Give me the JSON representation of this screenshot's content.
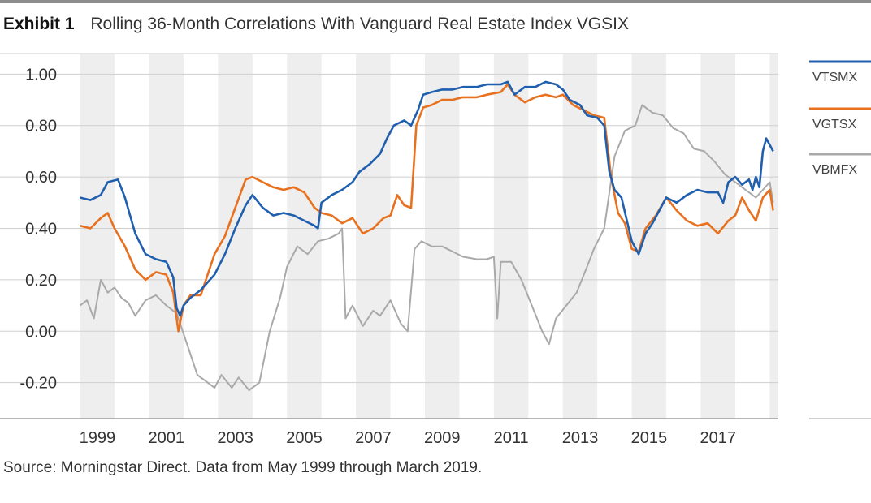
{
  "header": {
    "exhibit_label": "Exhibit 1",
    "title": "Rolling 36-Month Correlations With Vanguard Real Estate Index VGSIX"
  },
  "footer": {
    "source": "Source: Morningstar Direct. Data from May 1999 through March 2019."
  },
  "colors": {
    "VTSMX": "#1f5fad",
    "VGTSX": "#e8711f",
    "VBMFX": "#a9a9a9",
    "band": "#eeeeee",
    "grid": "#cfcfcf",
    "rule": "#8c8c8c"
  },
  "chart_data": {
    "type": "line",
    "title": "Rolling 36-Month Correlations With Vanguard Real Estate Index VGSIX",
    "xlabel": "",
    "ylabel": "",
    "xlim": [
      1998.75,
      2019.25
    ],
    "ylim": [
      -0.34,
      1.08
    ],
    "y_ticks": [
      1.0,
      0.8,
      0.6,
      0.4,
      0.2,
      0.0,
      -0.2
    ],
    "y_tick_labels": [
      "1.00",
      "0.80",
      "0.60",
      "0.40",
      "0.20",
      "0.00",
      "-0.20"
    ],
    "x_tick_labels": [
      "1999",
      "2001",
      "2003",
      "2005",
      "2007",
      "2009",
      "2011",
      "2013",
      "2015",
      "2017"
    ],
    "x_tick_positions": [
      1999.5,
      2001.5,
      2003.5,
      2005.5,
      2007.5,
      2009.5,
      2011.5,
      2013.5,
      2015.5,
      2017.5
    ],
    "shaded_year_bands": [
      [
        1999,
        2000
      ],
      [
        2001,
        2002
      ],
      [
        2003,
        2004
      ],
      [
        2005,
        2006
      ],
      [
        2007,
        2008
      ],
      [
        2009,
        2010
      ],
      [
        2011,
        2012
      ],
      [
        2013,
        2014
      ],
      [
        2015,
        2016
      ],
      [
        2017,
        2018
      ],
      [
        2019,
        2019.25
      ]
    ],
    "legend_position": "right",
    "series": [
      {
        "name": "VTSMX",
        "points": [
          [
            1999.0,
            0.52
          ],
          [
            1999.3,
            0.51
          ],
          [
            1999.6,
            0.53
          ],
          [
            1999.8,
            0.58
          ],
          [
            2000.1,
            0.59
          ],
          [
            2000.3,
            0.52
          ],
          [
            2000.6,
            0.38
          ],
          [
            2000.9,
            0.3
          ],
          [
            2001.2,
            0.28
          ],
          [
            2001.5,
            0.27
          ],
          [
            2001.7,
            0.21
          ],
          [
            2001.8,
            0.09
          ],
          [
            2001.9,
            0.06
          ],
          [
            2002.0,
            0.1
          ],
          [
            2002.2,
            0.13
          ],
          [
            2002.5,
            0.16
          ],
          [
            2002.9,
            0.22
          ],
          [
            2003.2,
            0.3
          ],
          [
            2003.5,
            0.4
          ],
          [
            2003.8,
            0.49
          ],
          [
            2004.0,
            0.53
          ],
          [
            2004.3,
            0.48
          ],
          [
            2004.6,
            0.45
          ],
          [
            2004.9,
            0.46
          ],
          [
            2005.2,
            0.45
          ],
          [
            2005.5,
            0.43
          ],
          [
            2005.8,
            0.41
          ],
          [
            2005.9,
            0.4
          ],
          [
            2006.0,
            0.5
          ],
          [
            2006.3,
            0.53
          ],
          [
            2006.6,
            0.55
          ],
          [
            2006.9,
            0.58
          ],
          [
            2007.1,
            0.62
          ],
          [
            2007.4,
            0.65
          ],
          [
            2007.7,
            0.69
          ],
          [
            2007.9,
            0.75
          ],
          [
            2008.1,
            0.8
          ],
          [
            2008.4,
            0.82
          ],
          [
            2008.6,
            0.8
          ],
          [
            2008.8,
            0.86
          ],
          [
            2008.95,
            0.92
          ],
          [
            2009.2,
            0.93
          ],
          [
            2009.5,
            0.94
          ],
          [
            2009.8,
            0.94
          ],
          [
            2010.1,
            0.95
          ],
          [
            2010.5,
            0.95
          ],
          [
            2010.8,
            0.96
          ],
          [
            2011.2,
            0.96
          ],
          [
            2011.4,
            0.97
          ],
          [
            2011.6,
            0.92
          ],
          [
            2011.9,
            0.95
          ],
          [
            2012.2,
            0.95
          ],
          [
            2012.5,
            0.97
          ],
          [
            2012.8,
            0.96
          ],
          [
            2013.0,
            0.94
          ],
          [
            2013.2,
            0.9
          ],
          [
            2013.5,
            0.88
          ],
          [
            2013.7,
            0.84
          ],
          [
            2014.0,
            0.83
          ],
          [
            2014.2,
            0.8
          ],
          [
            2014.35,
            0.62
          ],
          [
            2014.5,
            0.55
          ],
          [
            2014.7,
            0.52
          ],
          [
            2015.0,
            0.35
          ],
          [
            2015.2,
            0.3
          ],
          [
            2015.4,
            0.38
          ],
          [
            2015.6,
            0.42
          ],
          [
            2015.8,
            0.47
          ],
          [
            2016.0,
            0.52
          ],
          [
            2016.3,
            0.5
          ],
          [
            2016.6,
            0.53
          ],
          [
            2016.9,
            0.55
          ],
          [
            2017.2,
            0.54
          ],
          [
            2017.5,
            0.54
          ],
          [
            2017.65,
            0.5
          ],
          [
            2017.8,
            0.58
          ],
          [
            2018.0,
            0.6
          ],
          [
            2018.2,
            0.57
          ],
          [
            2018.4,
            0.59
          ],
          [
            2018.5,
            0.55
          ],
          [
            2018.6,
            0.6
          ],
          [
            2018.7,
            0.56
          ],
          [
            2018.8,
            0.7
          ],
          [
            2018.9,
            0.75
          ],
          [
            2019.1,
            0.7
          ]
        ]
      },
      {
        "name": "VGTSX",
        "points": [
          [
            1999.0,
            0.41
          ],
          [
            1999.3,
            0.4
          ],
          [
            1999.6,
            0.44
          ],
          [
            1999.8,
            0.46
          ],
          [
            2000.0,
            0.4
          ],
          [
            2000.3,
            0.33
          ],
          [
            2000.6,
            0.24
          ],
          [
            2000.9,
            0.2
          ],
          [
            2001.2,
            0.23
          ],
          [
            2001.5,
            0.22
          ],
          [
            2001.7,
            0.15
          ],
          [
            2001.85,
            0.0
          ],
          [
            2002.0,
            0.1
          ],
          [
            2002.2,
            0.14
          ],
          [
            2002.5,
            0.14
          ],
          [
            2002.9,
            0.3
          ],
          [
            2003.2,
            0.37
          ],
          [
            2003.5,
            0.48
          ],
          [
            2003.8,
            0.59
          ],
          [
            2004.0,
            0.6
          ],
          [
            2004.3,
            0.58
          ],
          [
            2004.6,
            0.56
          ],
          [
            2004.9,
            0.55
          ],
          [
            2005.2,
            0.56
          ],
          [
            2005.5,
            0.54
          ],
          [
            2005.8,
            0.48
          ],
          [
            2006.0,
            0.46
          ],
          [
            2006.3,
            0.45
          ],
          [
            2006.6,
            0.42
          ],
          [
            2006.9,
            0.44
          ],
          [
            2007.2,
            0.38
          ],
          [
            2007.5,
            0.4
          ],
          [
            2007.8,
            0.44
          ],
          [
            2008.0,
            0.45
          ],
          [
            2008.2,
            0.53
          ],
          [
            2008.4,
            0.49
          ],
          [
            2008.6,
            0.48
          ],
          [
            2008.75,
            0.8
          ],
          [
            2008.95,
            0.87
          ],
          [
            2009.2,
            0.88
          ],
          [
            2009.5,
            0.9
          ],
          [
            2009.8,
            0.9
          ],
          [
            2010.1,
            0.91
          ],
          [
            2010.5,
            0.91
          ],
          [
            2010.8,
            0.92
          ],
          [
            2011.2,
            0.93
          ],
          [
            2011.4,
            0.96
          ],
          [
            2011.6,
            0.92
          ],
          [
            2011.9,
            0.89
          ],
          [
            2012.2,
            0.91
          ],
          [
            2012.5,
            0.92
          ],
          [
            2012.8,
            0.91
          ],
          [
            2013.0,
            0.92
          ],
          [
            2013.3,
            0.88
          ],
          [
            2013.6,
            0.86
          ],
          [
            2013.9,
            0.84
          ],
          [
            2014.2,
            0.83
          ],
          [
            2014.4,
            0.6
          ],
          [
            2014.6,
            0.46
          ],
          [
            2014.8,
            0.42
          ],
          [
            2015.0,
            0.32
          ],
          [
            2015.2,
            0.31
          ],
          [
            2015.4,
            0.4
          ],
          [
            2015.7,
            0.45
          ],
          [
            2016.0,
            0.52
          ],
          [
            2016.3,
            0.47
          ],
          [
            2016.6,
            0.43
          ],
          [
            2016.9,
            0.41
          ],
          [
            2017.2,
            0.42
          ],
          [
            2017.5,
            0.38
          ],
          [
            2017.8,
            0.43
          ],
          [
            2018.0,
            0.45
          ],
          [
            2018.2,
            0.52
          ],
          [
            2018.4,
            0.47
          ],
          [
            2018.6,
            0.43
          ],
          [
            2018.8,
            0.52
          ],
          [
            2019.0,
            0.55
          ],
          [
            2019.1,
            0.47
          ]
        ]
      },
      {
        "name": "VBMFX",
        "points": [
          [
            1999.0,
            0.1
          ],
          [
            1999.2,
            0.12
          ],
          [
            1999.4,
            0.05
          ],
          [
            1999.6,
            0.2
          ],
          [
            1999.8,
            0.15
          ],
          [
            2000.0,
            0.17
          ],
          [
            2000.2,
            0.13
          ],
          [
            2000.4,
            0.11
          ],
          [
            2000.6,
            0.06
          ],
          [
            2000.9,
            0.12
          ],
          [
            2001.2,
            0.14
          ],
          [
            2001.5,
            0.1
          ],
          [
            2001.8,
            0.07
          ],
          [
            2002.1,
            -0.05
          ],
          [
            2002.4,
            -0.17
          ],
          [
            2002.7,
            -0.2
          ],
          [
            2002.9,
            -0.22
          ],
          [
            2003.1,
            -0.17
          ],
          [
            2003.4,
            -0.22
          ],
          [
            2003.6,
            -0.18
          ],
          [
            2003.9,
            -0.23
          ],
          [
            2004.2,
            -0.2
          ],
          [
            2004.5,
            0.0
          ],
          [
            2004.8,
            0.13
          ],
          [
            2005.0,
            0.25
          ],
          [
            2005.3,
            0.33
          ],
          [
            2005.6,
            0.3
          ],
          [
            2005.9,
            0.35
          ],
          [
            2006.2,
            0.36
          ],
          [
            2006.5,
            0.38
          ],
          [
            2006.6,
            0.4
          ],
          [
            2006.7,
            0.05
          ],
          [
            2006.9,
            0.1
          ],
          [
            2007.2,
            0.02
          ],
          [
            2007.5,
            0.08
          ],
          [
            2007.7,
            0.06
          ],
          [
            2008.0,
            0.12
          ],
          [
            2008.3,
            0.03
          ],
          [
            2008.5,
            0.0
          ],
          [
            2008.7,
            0.32
          ],
          [
            2008.9,
            0.35
          ],
          [
            2009.2,
            0.33
          ],
          [
            2009.5,
            0.33
          ],
          [
            2009.8,
            0.31
          ],
          [
            2010.1,
            0.29
          ],
          [
            2010.5,
            0.28
          ],
          [
            2010.8,
            0.28
          ],
          [
            2011.0,
            0.29
          ],
          [
            2011.1,
            0.05
          ],
          [
            2011.2,
            0.27
          ],
          [
            2011.5,
            0.27
          ],
          [
            2011.8,
            0.2
          ],
          [
            2012.1,
            0.1
          ],
          [
            2012.4,
            0.0
          ],
          [
            2012.6,
            -0.05
          ],
          [
            2012.8,
            0.05
          ],
          [
            2013.1,
            0.1
          ],
          [
            2013.4,
            0.15
          ],
          [
            2013.7,
            0.25
          ],
          [
            2013.9,
            0.32
          ],
          [
            2014.2,
            0.4
          ],
          [
            2014.5,
            0.68
          ],
          [
            2014.8,
            0.78
          ],
          [
            2015.1,
            0.8
          ],
          [
            2015.3,
            0.88
          ],
          [
            2015.6,
            0.85
          ],
          [
            2015.9,
            0.84
          ],
          [
            2016.2,
            0.79
          ],
          [
            2016.5,
            0.77
          ],
          [
            2016.8,
            0.71
          ],
          [
            2017.1,
            0.7
          ],
          [
            2017.4,
            0.66
          ],
          [
            2017.7,
            0.61
          ],
          [
            2018.0,
            0.58
          ],
          [
            2018.3,
            0.55
          ],
          [
            2018.6,
            0.52
          ],
          [
            2018.8,
            0.55
          ],
          [
            2019.0,
            0.58
          ],
          [
            2019.1,
            0.5
          ]
        ]
      }
    ]
  }
}
